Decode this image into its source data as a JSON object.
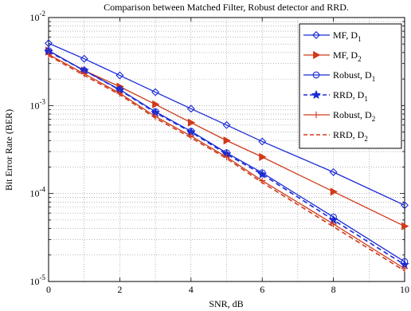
{
  "chart_data": {
    "type": "line",
    "title": "Comparison between Matched Filter, Robust detector and RRD.",
    "xlabel": "SNR, dB",
    "ylabel": "Bit Error Rate (BER)",
    "xlim": [
      0,
      10
    ],
    "ylim": [
      1e-05,
      0.01
    ],
    "yscale": "log",
    "grid": true,
    "legend_position": "top-right",
    "x_ticks": [
      "0",
      "2",
      "4",
      "6",
      "8",
      "10"
    ],
    "y_ticks": [
      {
        "value": 0.01,
        "base": "10",
        "exp": "-2"
      },
      {
        "value": 0.001,
        "base": "10",
        "exp": "-3"
      },
      {
        "value": 0.0001,
        "base": "10",
        "exp": "-4"
      },
      {
        "value": 1e-05,
        "base": "10",
        "exp": "-5"
      }
    ],
    "series": [
      {
        "name": "MF, D",
        "sub": "1",
        "color": "#1a2bd6",
        "dash": "solid",
        "marker": "diamond",
        "x": [
          0,
          1,
          2,
          3,
          4,
          5,
          6,
          8,
          10
        ],
        "y": [
          0.0051,
          0.0034,
          0.0022,
          0.00142,
          0.00092,
          0.0006,
          0.00039,
          0.000175,
          7.35e-05
        ]
      },
      {
        "name": "MF, D",
        "sub": "2",
        "color": "#d03a1a",
        "dash": "solid",
        "marker": "triangle-right",
        "x": [
          0,
          1,
          2,
          3,
          4,
          5,
          6,
          8,
          10
        ],
        "y": [
          0.0042,
          0.0025,
          0.00164,
          0.00103,
          0.00064,
          0.0004,
          0.00026,
          0.000105,
          4.25e-05
        ]
      },
      {
        "name": "Robust, D",
        "sub": "1",
        "color": "#1a2bd6",
        "dash": "solid",
        "marker": "circle",
        "x": [
          0,
          1,
          2,
          3,
          4,
          5,
          6,
          8,
          10
        ],
        "y": [
          0.0042,
          0.0025,
          0.00152,
          0.00085,
          0.00051,
          0.00029,
          0.000172,
          5.4e-05,
          1.68e-05
        ]
      },
      {
        "name": "RRD, D",
        "sub": "1",
        "color": "#1a2bd6",
        "dash": "dashed",
        "marker": "star",
        "x": [
          0,
          1,
          2,
          3,
          4,
          5,
          6,
          8,
          10
        ],
        "y": [
          0.0041,
          0.0025,
          0.0015,
          0.00083,
          0.0005,
          0.00028,
          0.000165,
          5e-05,
          1.55e-05
        ]
      },
      {
        "name": "Robust, D",
        "sub": "2",
        "color": "#d03a1a",
        "dash": "solid",
        "marker": "plus",
        "x": [
          0,
          1,
          2,
          3,
          4,
          5,
          6,
          8,
          10
        ],
        "y": [
          0.0038,
          0.0023,
          0.00138,
          0.00075,
          0.00045,
          0.00026,
          0.00014,
          4.5e-05,
          1.4e-05
        ]
      },
      {
        "name": "RRD, D",
        "sub": "2",
        "color": "#d03a1a",
        "dash": "dashed",
        "marker": "none",
        "x": [
          0,
          1,
          2,
          3,
          4,
          5,
          6,
          8,
          10
        ],
        "y": [
          0.0037,
          0.0022,
          0.00133,
          0.00072,
          0.00043,
          0.00025,
          0.000133,
          4.2e-05,
          1.32e-05
        ]
      }
    ]
  }
}
